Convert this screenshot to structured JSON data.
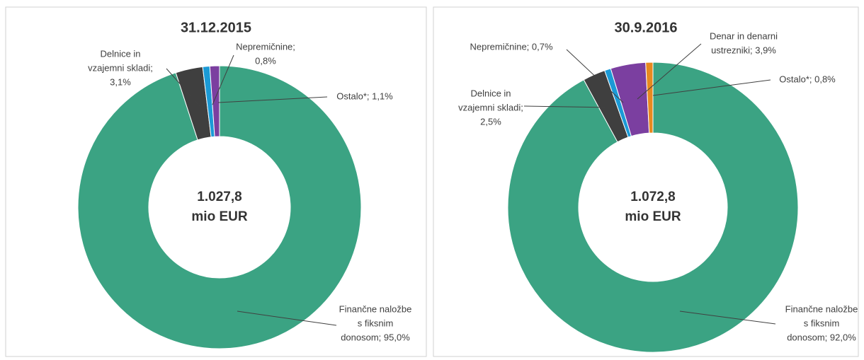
{
  "chart_data": [
    {
      "type": "donut",
      "title": "31.12.2015",
      "center_label": [
        "1.027,8",
        "mio EUR"
      ],
      "labels": [
        [
          "Finančne naložbe",
          "s fiksnim",
          "donosom; 95,0%"
        ],
        [
          "Delnice in",
          "vzajemni skladi;",
          "3,1%"
        ],
        [
          "Nepremičnine;",
          "0,8%"
        ],
        [
          "Ostalo*; 1,1%"
        ]
      ],
      "values": [
        95.0,
        3.1,
        0.8,
        1.1
      ],
      "colors": [
        "#3ba383",
        "#3f3f3f",
        "#1b9ad6",
        "#7b3fa0"
      ]
    },
    {
      "type": "donut",
      "title": "30.9.2016",
      "center_label": [
        "1.072,8",
        "mio EUR"
      ],
      "labels": [
        [
          "Finančne naložbe",
          "s fiksnim",
          "donosom; 92,0%"
        ],
        [
          "Delnice in",
          "vzajemni skladi;",
          "2,5%"
        ],
        [
          "Nepremičnine; 0,7%"
        ],
        [
          "Denar in denarni",
          "ustrezniki; 3,9%"
        ],
        [
          "Ostalo*; 0,8%"
        ]
      ],
      "values": [
        92.0,
        2.5,
        0.7,
        3.9,
        0.8
      ],
      "colors": [
        "#3ba383",
        "#3f3f3f",
        "#1b9ad6",
        "#7b3fa0",
        "#e8891f"
      ]
    }
  ]
}
